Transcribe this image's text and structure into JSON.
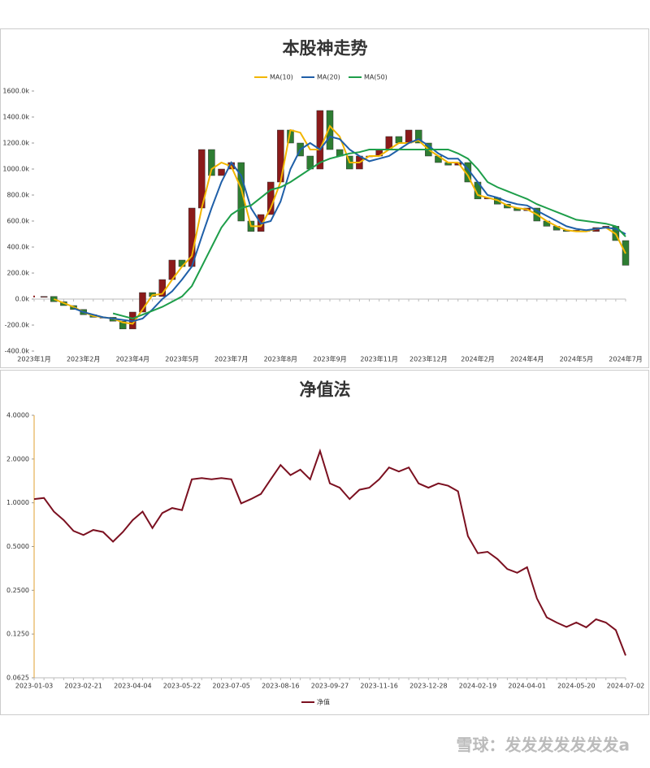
{
  "chart_data": [
    {
      "type": "candlestick",
      "title": "本股神走势",
      "categories": [
        "2023年1月",
        null,
        null,
        null,
        null,
        "2023年2月",
        null,
        null,
        null,
        null,
        "2023年4月",
        null,
        null,
        null,
        null,
        "2023年5月",
        null,
        null,
        null,
        null,
        "2023年7月",
        null,
        null,
        null,
        null,
        "2023年8月",
        null,
        null,
        null,
        null,
        "2023年9月",
        null,
        null,
        null,
        null,
        "2023年11月",
        null,
        null,
        null,
        null,
        "2023年12月",
        null,
        null,
        null,
        null,
        "2024年2月",
        null,
        null,
        null,
        null,
        "2024年4月",
        null,
        null,
        null,
        null,
        "2024年5月",
        null,
        null,
        null,
        null,
        "2024年7月"
      ],
      "values": [
        20000,
        20000,
        -20000,
        -50000,
        -80000,
        -120000,
        -140000,
        -140000,
        -170000,
        -230000,
        -100000,
        50000,
        20000,
        150000,
        300000,
        250000,
        700000,
        1150000,
        950000,
        1000000,
        1050000,
        600000,
        520000,
        650000,
        900000,
        1300000,
        1200000,
        1100000,
        1000000,
        1450000,
        1150000,
        1100000,
        1000000,
        1100000,
        1100000,
        1150000,
        1250000,
        1200000,
        1300000,
        1200000,
        1100000,
        1050000,
        1030000,
        1050000,
        900000,
        770000,
        780000,
        730000,
        700000,
        680000,
        700000,
        600000,
        560000,
        530000,
        520000,
        530000,
        520000,
        550000,
        560000,
        450000,
        260000
      ],
      "up_color": "#8b1a1a",
      "down_color": "#2e7d32",
      "series": [
        {
          "name": "MA(10)",
          "color": "#f2b600",
          "values": [
            null,
            null,
            0,
            -30000,
            -60000,
            -100000,
            -130000,
            -140000,
            -150000,
            -180000,
            -190000,
            -80000,
            30000,
            40000,
            150000,
            250000,
            330000,
            700000,
            1000000,
            1050000,
            1020000,
            850000,
            560000,
            560000,
            700000,
            900000,
            1300000,
            1280000,
            1150000,
            1150000,
            1330000,
            1250000,
            1050000,
            1050000,
            1100000,
            1100000,
            1150000,
            1200000,
            1200000,
            1220000,
            1150000,
            1100000,
            1050000,
            1050000,
            950000,
            800000,
            780000,
            760000,
            720000,
            700000,
            690000,
            650000,
            600000,
            560000,
            530000,
            520000,
            520000,
            540000,
            550000,
            500000,
            350000
          ]
        },
        {
          "name": "MA(20)",
          "color": "#1f5fa8",
          "values": [
            null,
            null,
            null,
            null,
            -70000,
            -100000,
            -120000,
            -140000,
            -150000,
            -160000,
            -170000,
            -150000,
            -80000,
            0,
            60000,
            150000,
            250000,
            480000,
            700000,
            900000,
            1050000,
            950000,
            700000,
            580000,
            600000,
            750000,
            1000000,
            1150000,
            1200000,
            1150000,
            1250000,
            1230000,
            1150000,
            1100000,
            1060000,
            1080000,
            1100000,
            1150000,
            1200000,
            1230000,
            1180000,
            1120000,
            1080000,
            1080000,
            1000000,
            900000,
            800000,
            780000,
            750000,
            730000,
            720000,
            680000,
            640000,
            600000,
            560000,
            540000,
            530000,
            540000,
            550000,
            540000,
            500000
          ]
        },
        {
          "name": "MA(50)",
          "color": "#1e9e4a",
          "values": [
            null,
            null,
            null,
            null,
            null,
            null,
            null,
            null,
            -110000,
            -130000,
            -150000,
            -120000,
            -90000,
            -60000,
            -20000,
            20000,
            100000,
            250000,
            400000,
            550000,
            650000,
            700000,
            720000,
            780000,
            840000,
            860000,
            900000,
            950000,
            1000000,
            1050000,
            1080000,
            1100000,
            1120000,
            1130000,
            1150000,
            1150000,
            1150000,
            1150000,
            1150000,
            1150000,
            1150000,
            1150000,
            1150000,
            1120000,
            1080000,
            1000000,
            900000,
            860000,
            830000,
            800000,
            770000,
            730000,
            700000,
            670000,
            640000,
            610000,
            600000,
            590000,
            580000,
            560000,
            480000
          ]
        }
      ],
      "ylim": [
        -400000,
        1600000
      ],
      "yticks": [
        {
          "value": -400000,
          "label": "-400.0k"
        },
        {
          "value": -200000,
          "label": "-200.0k"
        },
        {
          "value": 0,
          "label": "0.0k"
        },
        {
          "value": 200000,
          "label": "200.0k"
        },
        {
          "value": 400000,
          "label": "400.0k"
        },
        {
          "value": 600000,
          "label": "600.0k"
        },
        {
          "value": 800000,
          "label": "800.0k"
        },
        {
          "value": 1000000,
          "label": "1000.0k"
        },
        {
          "value": 1200000,
          "label": "1200.0k"
        },
        {
          "value": 1400000,
          "label": "1400.0k"
        },
        {
          "value": 1600000,
          "label": "1600.0k"
        }
      ],
      "legend": "top",
      "grid": false
    },
    {
      "type": "line",
      "title": "净值法",
      "categories": [
        "2023-01-03",
        null,
        null,
        null,
        null,
        "2023-02-21",
        null,
        null,
        null,
        null,
        "2023-04-04",
        null,
        null,
        null,
        null,
        "2023-05-22",
        null,
        null,
        null,
        null,
        "2023-07-05",
        null,
        null,
        null,
        null,
        "2023-08-16",
        null,
        null,
        null,
        null,
        "2023-09-27",
        null,
        null,
        null,
        null,
        "2023-11-16",
        null,
        null,
        null,
        null,
        "2023-12-28",
        null,
        null,
        null,
        null,
        "2024-02-19",
        null,
        null,
        null,
        null,
        "2024-04-01",
        null,
        null,
        null,
        null,
        "2024-05-20",
        null,
        null,
        null,
        null,
        "2024-07-02"
      ],
      "series": [
        {
          "name": "净值",
          "color": "#7b1020",
          "values": [
            1.06,
            1.08,
            0.87,
            0.76,
            0.64,
            0.6,
            0.65,
            0.63,
            0.54,
            0.63,
            0.76,
            0.87,
            0.67,
            0.85,
            0.92,
            0.89,
            1.45,
            1.48,
            1.45,
            1.48,
            1.45,
            0.99,
            1.06,
            1.15,
            1.45,
            1.82,
            1.55,
            1.69,
            1.45,
            2.27,
            1.36,
            1.27,
            1.06,
            1.23,
            1.27,
            1.45,
            1.75,
            1.64,
            1.75,
            1.36,
            1.27,
            1.36,
            1.31,
            1.2,
            0.59,
            0.45,
            0.46,
            0.41,
            0.35,
            0.33,
            0.36,
            0.22,
            0.163,
            0.15,
            0.14,
            0.15,
            0.139,
            0.158,
            0.15,
            0.133,
            0.089
          ]
        }
      ],
      "ylim": [
        0.0625,
        4
      ],
      "log_scale": true,
      "yticks": [
        {
          "value": 0.0625,
          "label": "0.0625"
        },
        {
          "value": 0.125,
          "label": "0.1250"
        },
        {
          "value": 0.25,
          "label": "0.2500"
        },
        {
          "value": 0.5,
          "label": "0.5000"
        },
        {
          "value": 1,
          "label": "1.0000"
        },
        {
          "value": 2,
          "label": "2.0000"
        },
        {
          "value": 4,
          "label": "4.0000"
        }
      ],
      "legend": "bottom",
      "grid": false
    }
  ],
  "watermark": "雪球：发发发发发发发a"
}
